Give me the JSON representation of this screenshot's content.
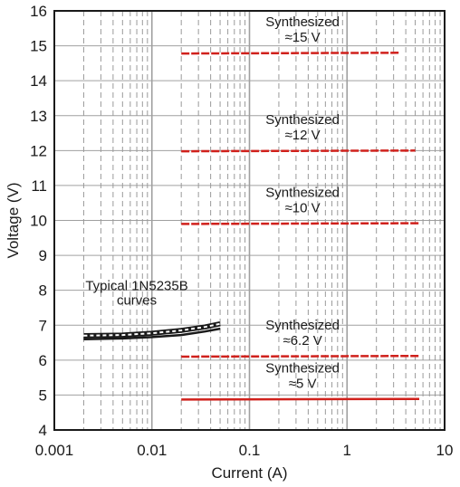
{
  "chart_data": {
    "type": "line",
    "xlabel": "Current (A)",
    "ylabel": "Voltage (V)",
    "xscale": "log",
    "xlim": [
      0.001,
      10
    ],
    "ylim": [
      4,
      16
    ],
    "grid": true,
    "x_tick_labels": [
      "0.001",
      "0.01",
      "0.1",
      "1",
      "10"
    ],
    "y_tick_labels": [
      "4",
      "5",
      "6",
      "7",
      "8",
      "9",
      "10",
      "11",
      "12",
      "13",
      "14",
      "15",
      "16"
    ],
    "colors": {
      "synthesized": "#d0211c",
      "typical": "#1a1a1a",
      "grid_major": "#a0a0a0",
      "grid_minor": "#9a9a9a"
    },
    "series": [
      {
        "group": "synth15",
        "style": "dashed",
        "color": "#d0211c",
        "x": [
          0.02,
          3.5
        ],
        "y": [
          14.78,
          14.8
        ]
      },
      {
        "group": "synth12",
        "style": "dashed",
        "color": "#d0211c",
        "x": [
          0.02,
          5
        ],
        "y": [
          11.98,
          12.0
        ]
      },
      {
        "group": "synth10",
        "style": "dashed",
        "color": "#d0211c",
        "x": [
          0.02,
          5.5
        ],
        "y": [
          9.9,
          9.92
        ]
      },
      {
        "group": "synth62",
        "style": "dashed",
        "color": "#d0211c",
        "x": [
          0.02,
          5.5
        ],
        "y": [
          6.1,
          6.12
        ]
      },
      {
        "group": "synth5",
        "style": "solid",
        "color": "#d0211c",
        "x": [
          0.02,
          5.5
        ],
        "y": [
          4.87,
          4.89
        ]
      },
      {
        "group": "typical",
        "style": "solid",
        "color": "#1a1a1a",
        "x": [
          0.002,
          0.005,
          0.01,
          0.02,
          0.035,
          0.05
        ],
        "y": [
          6.6,
          6.62,
          6.66,
          6.72,
          6.82,
          6.9
        ]
      },
      {
        "group": "typical",
        "style": "dashed",
        "color": "#1a1a1a",
        "x": [
          0.002,
          0.005,
          0.01,
          0.02,
          0.035,
          0.05
        ],
        "y": [
          6.7,
          6.72,
          6.77,
          6.85,
          6.95,
          7.04
        ]
      }
    ],
    "annotations": [
      {
        "group": "synth15",
        "lines": [
          "Synthesized",
          "≈15 V"
        ]
      },
      {
        "group": "synth12",
        "lines": [
          "Synthesized",
          "≈12 V"
        ]
      },
      {
        "group": "synth10",
        "lines": [
          "Synthesized",
          "≈10 V"
        ]
      },
      {
        "group": "synth62",
        "lines": [
          "Synthesized",
          "≈6.2 V"
        ]
      },
      {
        "group": "synth5",
        "lines": [
          "Synthesized",
          "≈5 V"
        ]
      },
      {
        "group": "typical",
        "lines": [
          "Typical 1N5235B",
          "curves"
        ]
      }
    ]
  }
}
